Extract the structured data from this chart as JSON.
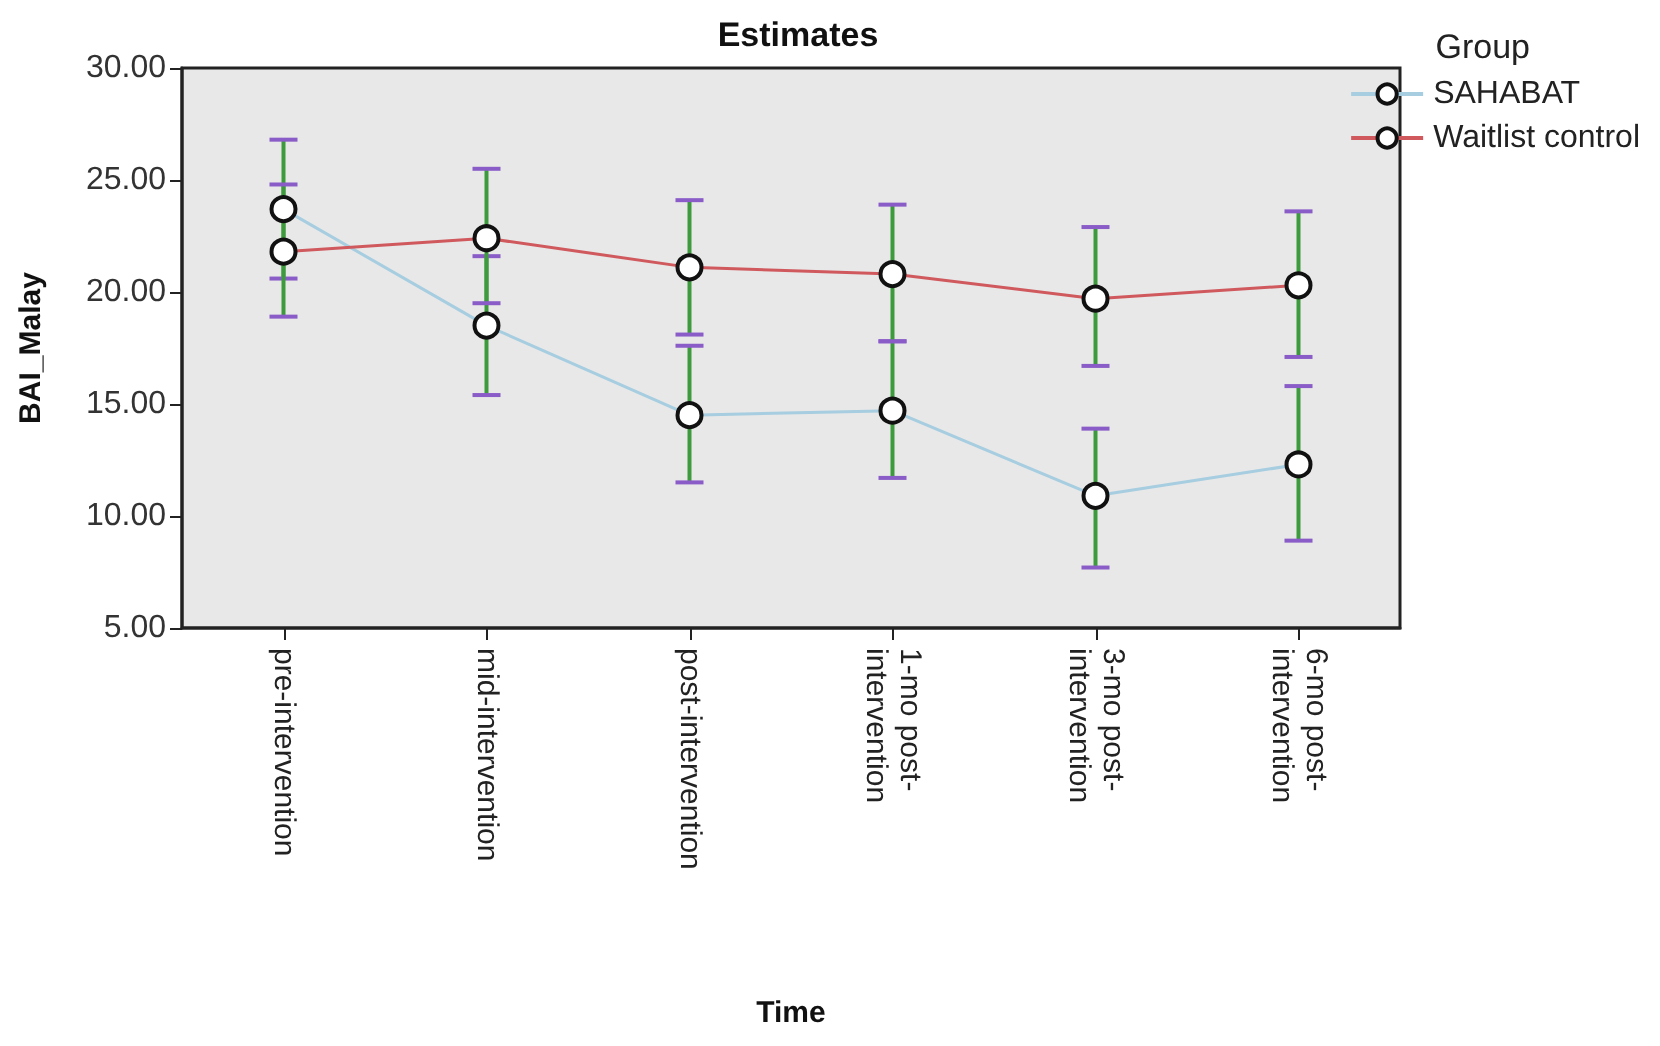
{
  "chart_data": {
    "type": "line",
    "title": "Estimates",
    "xlabel": "Time",
    "ylabel": "BAI_Malay",
    "legend_title": "Group",
    "legend": "top right",
    "grid": false,
    "marker": "circle",
    "line_style": "solid",
    "categories": [
      "pre-intervention",
      "mid-intervention",
      "post-intervention",
      "1-mo post-\nintervention",
      "3-mo post-\nintervention",
      "6-mo post-\nintervention"
    ],
    "ylim": [
      5,
      30
    ],
    "yticks": [
      {
        "value": 5,
        "label": "5.00"
      },
      {
        "value": 10,
        "label": "10.00"
      },
      {
        "value": 15,
        "label": "15.00"
      },
      {
        "value": 20,
        "label": "20.00"
      },
      {
        "value": 25,
        "label": "25.00"
      },
      {
        "value": 30,
        "label": "30.00"
      }
    ],
    "series": [
      {
        "name": "SAHABAT",
        "color": "#a6cde0",
        "values": [
          23.7,
          18.5,
          14.5,
          14.7,
          10.9,
          12.3
        ],
        "errors": [
          [
            20.6,
            26.8
          ],
          [
            15.4,
            21.6
          ],
          [
            11.5,
            17.6
          ],
          [
            11.7,
            17.8
          ],
          [
            7.7,
            13.9
          ],
          [
            8.9,
            15.8
          ]
        ]
      },
      {
        "name": "Waitlist control",
        "color": "#d0595e",
        "values": [
          21.8,
          22.4,
          21.1,
          20.8,
          19.7,
          20.3
        ],
        "errors": [
          [
            18.9,
            24.8
          ],
          [
            19.5,
            25.5
          ],
          [
            18.1,
            24.1
          ],
          [
            17.8,
            23.9
          ],
          [
            16.7,
            22.9
          ],
          [
            17.1,
            23.6
          ]
        ]
      }
    ]
  }
}
